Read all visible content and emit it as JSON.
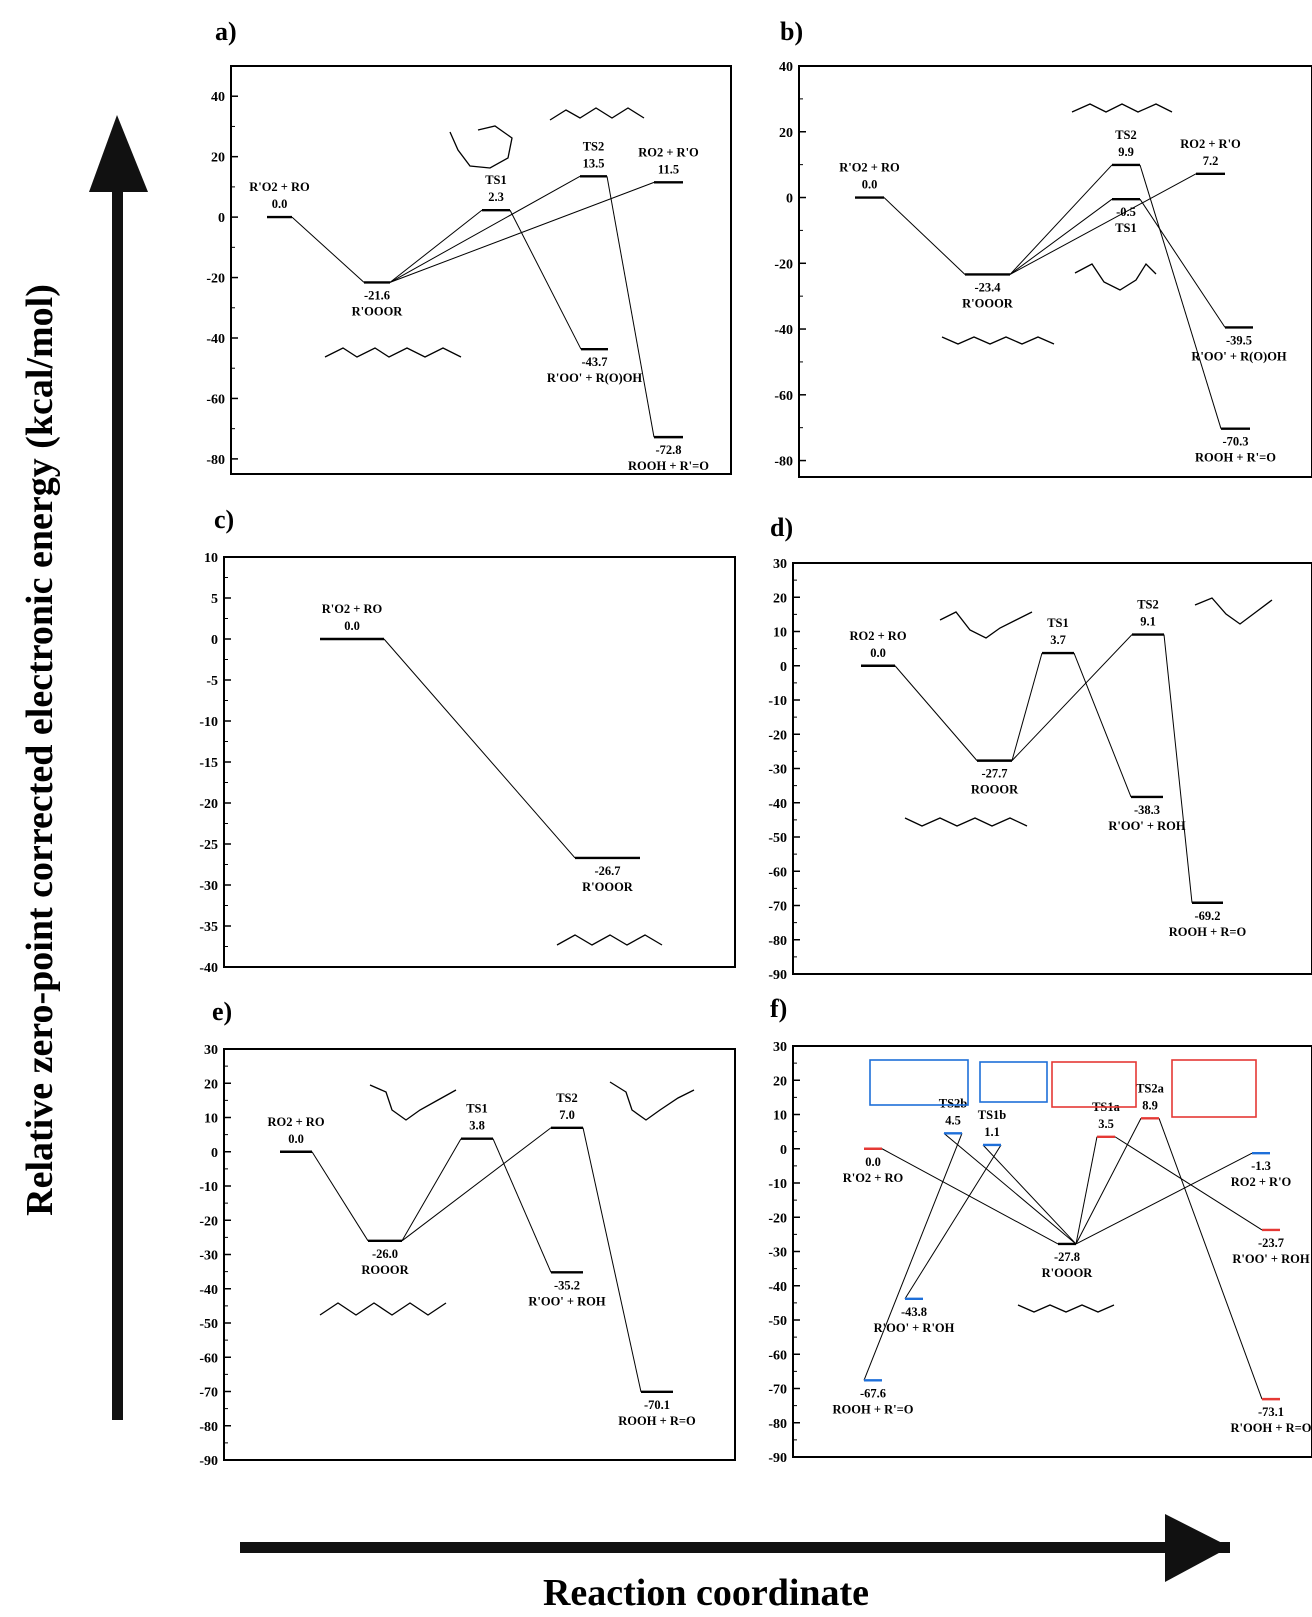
{
  "y_axis_label": "Relative zero-point corrected electronic energy (kcal/mol)",
  "x_axis_label": "Reaction coordinate",
  "chart_data": [
    {
      "panel": "a)",
      "type": "energy-diagram",
      "ylim": [
        -85,
        50
      ],
      "yticks": [
        40,
        20,
        0,
        -20,
        -40,
        -60,
        -80
      ],
      "levels": [
        {
          "id": "start",
          "value": 0.0,
          "value_label": "0.0",
          "name": "R'O2 + RO",
          "color": "#000000"
        },
        {
          "id": "int",
          "value": -21.6,
          "value_label": "-21.6",
          "name": "R'OOOR",
          "color": "#000000"
        },
        {
          "id": "ts1",
          "value": 2.3,
          "value_label": "2.3",
          "name": "TS1",
          "color": "#000000"
        },
        {
          "id": "ts2",
          "value": 13.5,
          "value_label": "13.5",
          "name": "TS2",
          "color": "#000000"
        },
        {
          "id": "p_rad",
          "value": 11.5,
          "value_label": "11.5",
          "name": "RO2 + R'O",
          "color": "#000000"
        },
        {
          "id": "p1",
          "value": -43.7,
          "value_label": "-43.7",
          "name": "R'OO' + R(O)OH",
          "color": "#000000"
        },
        {
          "id": "p2",
          "value": -72.8,
          "value_label": "-72.8",
          "name": "ROOH + R'=O",
          "color": "#000000"
        }
      ],
      "connections": [
        [
          "start",
          "int"
        ],
        [
          "int",
          "ts1"
        ],
        [
          "int",
          "ts2"
        ],
        [
          "int",
          "p_rad"
        ],
        [
          "ts1",
          "p1"
        ],
        [
          "ts2",
          "p2"
        ]
      ]
    },
    {
      "panel": "b)",
      "type": "energy-diagram",
      "ylim": [
        -85,
        40
      ],
      "yticks": [
        40,
        20,
        0,
        -20,
        -40,
        -60,
        -80
      ],
      "levels": [
        {
          "id": "start",
          "value": 0.0,
          "value_label": "0.0",
          "name": "R'O2 + RO",
          "color": "#000000"
        },
        {
          "id": "int",
          "value": -23.4,
          "value_label": "-23.4",
          "name": "R'OOOR",
          "color": "#000000"
        },
        {
          "id": "ts2",
          "value": 9.9,
          "value_label": "9.9",
          "name": "TS2",
          "color": "#000000"
        },
        {
          "id": "ts1",
          "value": -0.5,
          "value_label": "-0.5",
          "name": "TS1",
          "color": "#000000"
        },
        {
          "id": "p_rad",
          "value": 7.2,
          "value_label": "7.2",
          "name": "RO2 + R'O",
          "color": "#000000"
        },
        {
          "id": "p1",
          "value": -39.5,
          "value_label": "-39.5",
          "name": "R'OO' + R(O)OH",
          "color": "#000000"
        },
        {
          "id": "p2",
          "value": -70.3,
          "value_label": "-70.3",
          "name": "ROOH + R'=O",
          "color": "#000000"
        }
      ],
      "connections": [
        [
          "start",
          "int"
        ],
        [
          "int",
          "ts1"
        ],
        [
          "int",
          "ts2"
        ],
        [
          "int",
          "p_rad"
        ],
        [
          "ts1",
          "p1"
        ],
        [
          "ts2",
          "p2"
        ]
      ]
    },
    {
      "panel": "c)",
      "type": "energy-diagram",
      "ylim": [
        -40,
        10
      ],
      "yticks": [
        10,
        5,
        0,
        -5,
        -10,
        -15,
        -20,
        -25,
        -30,
        -35,
        -40
      ],
      "levels": [
        {
          "id": "start",
          "value": 0.0,
          "value_label": "0.0",
          "name": "R'O2 + RO",
          "color": "#000000"
        },
        {
          "id": "int",
          "value": -26.7,
          "value_label": "-26.7",
          "name": "R'OOOR",
          "color": "#000000"
        }
      ],
      "connections": [
        [
          "start",
          "int"
        ]
      ]
    },
    {
      "panel": "d)",
      "type": "energy-diagram",
      "ylim": [
        -90,
        30
      ],
      "yticks": [
        30,
        20,
        10,
        0,
        -10,
        -20,
        -30,
        -40,
        -50,
        -60,
        -70,
        -80,
        -90
      ],
      "levels": [
        {
          "id": "start",
          "value": 0.0,
          "value_label": "0.0",
          "name": "RO2 + RO",
          "color": "#000000"
        },
        {
          "id": "int",
          "value": -27.7,
          "value_label": "-27.7",
          "name": "ROOOR",
          "color": "#000000"
        },
        {
          "id": "ts1",
          "value": 3.7,
          "value_label": "3.7",
          "name": "TS1",
          "color": "#000000"
        },
        {
          "id": "ts2",
          "value": 9.1,
          "value_label": "9.1",
          "name": "TS2",
          "color": "#000000"
        },
        {
          "id": "p1",
          "value": -38.3,
          "value_label": "-38.3",
          "name": "R'OO' + ROH",
          "color": "#000000"
        },
        {
          "id": "p2",
          "value": -69.2,
          "value_label": "-69.2",
          "name": "ROOH + R=O",
          "color": "#000000"
        }
      ],
      "connections": [
        [
          "start",
          "int"
        ],
        [
          "int",
          "ts1"
        ],
        [
          "int",
          "ts2"
        ],
        [
          "ts1",
          "p1"
        ],
        [
          "ts2",
          "p2"
        ]
      ]
    },
    {
      "panel": "e)",
      "type": "energy-diagram",
      "ylim": [
        -90,
        30
      ],
      "yticks": [
        30,
        20,
        10,
        0,
        -10,
        -20,
        -30,
        -40,
        -50,
        -60,
        -70,
        -80,
        -90
      ],
      "levels": [
        {
          "id": "start",
          "value": 0.0,
          "value_label": "0.0",
          "name": "RO2 + RO",
          "color": "#000000"
        },
        {
          "id": "int",
          "value": -26.0,
          "value_label": "-26.0",
          "name": "ROOOR",
          "color": "#000000"
        },
        {
          "id": "ts1",
          "value": 3.8,
          "value_label": "3.8",
          "name": "TS1",
          "color": "#000000"
        },
        {
          "id": "ts2",
          "value": 7.0,
          "value_label": "7.0",
          "name": "TS2",
          "color": "#000000"
        },
        {
          "id": "p1",
          "value": -35.2,
          "value_label": "-35.2",
          "name": "R'OO' + ROH",
          "color": "#000000"
        },
        {
          "id": "p2",
          "value": -70.1,
          "value_label": "-70.1",
          "name": "ROOH + R=O",
          "color": "#000000"
        }
      ],
      "connections": [
        [
          "start",
          "int"
        ],
        [
          "int",
          "ts1"
        ],
        [
          "int",
          "ts2"
        ],
        [
          "ts1",
          "p1"
        ],
        [
          "ts2",
          "p2"
        ]
      ]
    },
    {
      "panel": "f)",
      "type": "energy-diagram",
      "ylim": [
        -90,
        30
      ],
      "yticks": [
        30,
        20,
        10,
        0,
        -10,
        -20,
        -30,
        -40,
        -50,
        -60,
        -70,
        -80,
        -90
      ],
      "levels": [
        {
          "id": "start",
          "value": 0.0,
          "value_label": "0.0",
          "name": "R'O2 + RO",
          "color": "#e53935"
        },
        {
          "id": "ts2b",
          "value": 4.5,
          "value_label": "4.5",
          "name": "TS2b",
          "color": "#1e6fd9"
        },
        {
          "id": "ts1b",
          "value": 1.1,
          "value_label": "1.1",
          "name": "TS1b",
          "color": "#1e6fd9"
        },
        {
          "id": "p1b",
          "value": -43.8,
          "value_label": "-43.8",
          "name": "R'OO' + R'OH",
          "color": "#1e6fd9"
        },
        {
          "id": "p2b",
          "value": -67.6,
          "value_label": "-67.6",
          "name": "ROOH + R'=O",
          "color": "#1e6fd9"
        },
        {
          "id": "int",
          "value": -27.8,
          "value_label": "-27.8",
          "name": "R'OOOR",
          "color": "#000000"
        },
        {
          "id": "ts1a",
          "value": 3.5,
          "value_label": "3.5",
          "name": "TS1a",
          "color": "#e53935"
        },
        {
          "id": "ts2a",
          "value": 8.9,
          "value_label": "8.9",
          "name": "TS2a",
          "color": "#e53935"
        },
        {
          "id": "p1a",
          "value": -23.7,
          "value_label": "-23.7",
          "name": "R'OO' + ROH",
          "color": "#e53935"
        },
        {
          "id": "p_rad",
          "value": -1.3,
          "value_label": "-1.3",
          "name": "RO2 + R'O",
          "color": "#1e6fd9"
        },
        {
          "id": "p2a",
          "value": -73.1,
          "value_label": "-73.1",
          "name": "R'OOH + R=O",
          "color": "#e53935"
        }
      ],
      "connections": [
        [
          "start",
          "int"
        ],
        [
          "int",
          "ts2b"
        ],
        [
          "int",
          "ts1b"
        ],
        [
          "int",
          "ts1a"
        ],
        [
          "int",
          "ts2a"
        ],
        [
          "int",
          "p_rad"
        ],
        [
          "ts2b",
          "p2b"
        ],
        [
          "ts1b",
          "p1b"
        ],
        [
          "ts1a",
          "p1a"
        ],
        [
          "ts2a",
          "p2a"
        ]
      ]
    }
  ]
}
